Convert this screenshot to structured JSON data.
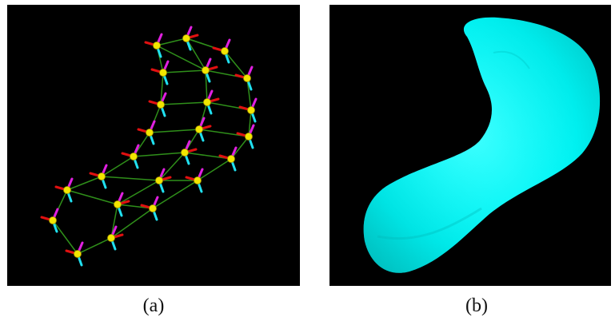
{
  "figure": {
    "caption_a": "(a)",
    "caption_b": "(b)"
  },
  "colors": {
    "background": "#000000",
    "node": "#f2e600",
    "edge": "#2f8f1a",
    "axis_red": "#e01010",
    "axis_magenta": "#e020e0",
    "axis_cyan": "#20e0f0",
    "surface": "#00ffff"
  }
}
